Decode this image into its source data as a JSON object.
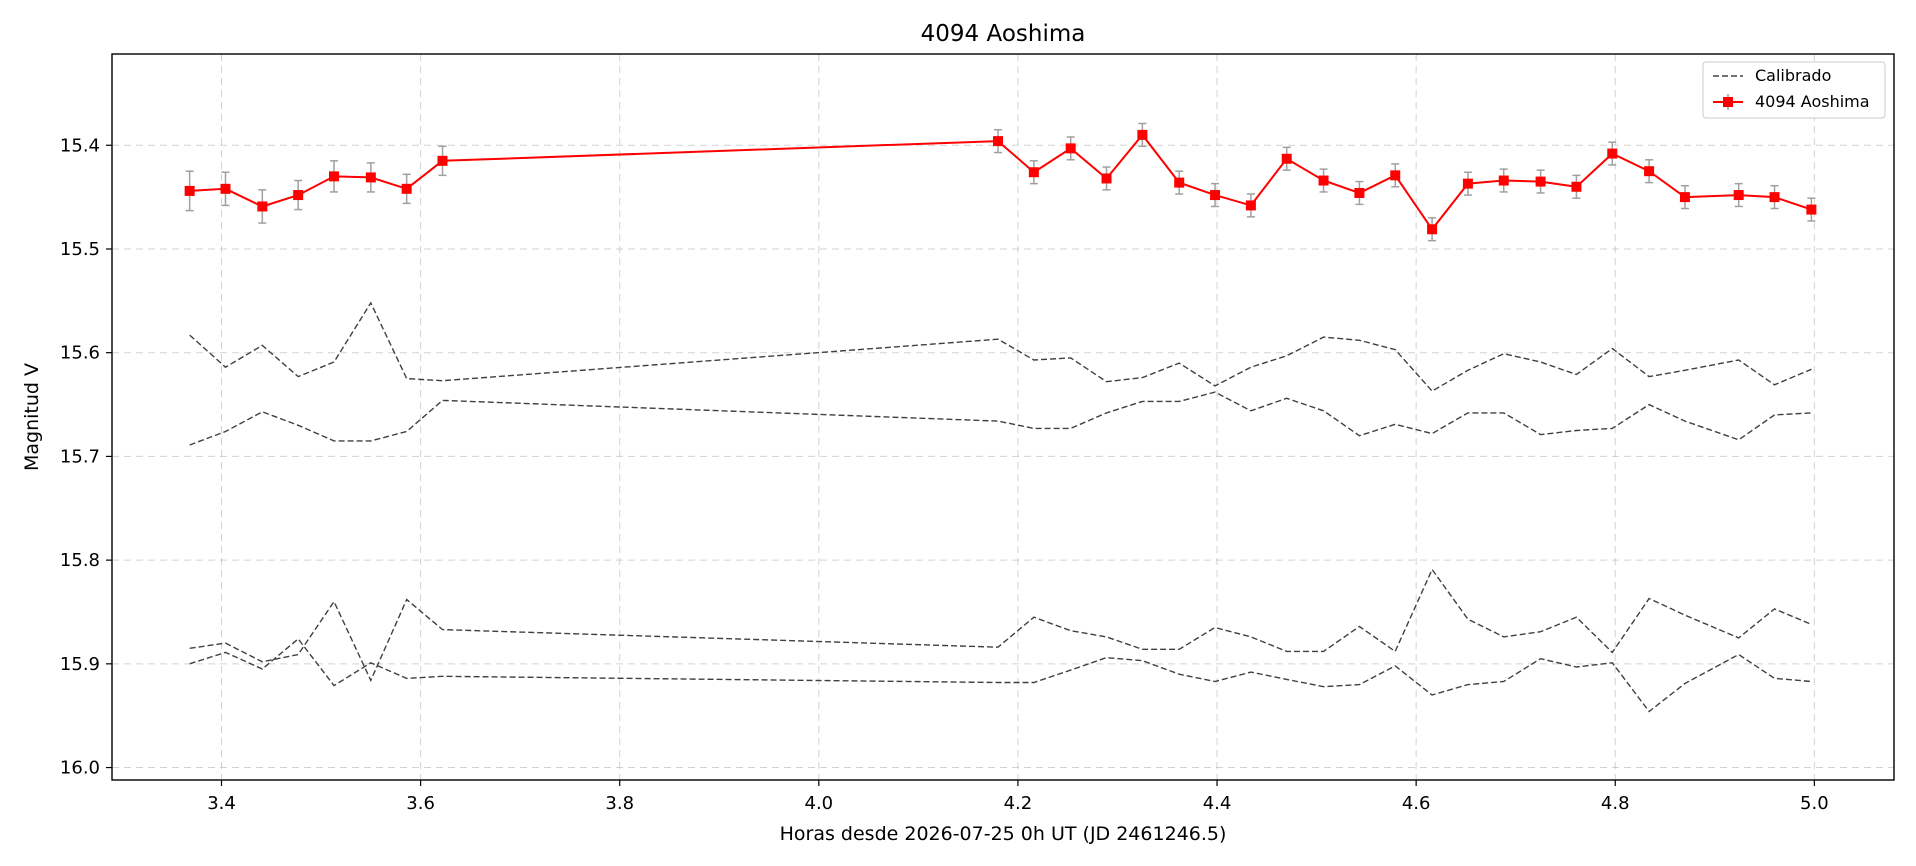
{
  "chart_data": {
    "type": "line",
    "title": "4094 Aoshima",
    "xlabel": "Horas desde 2026-07-25 0h UT (JD 2461246.5)",
    "ylabel": "Magnitud V",
    "xlim": [
      3.29,
      5.08
    ],
    "ylim": [
      16.012,
      15.312
    ],
    "y_inverted": true,
    "grid": true,
    "legend_position": "top-right",
    "x_ticks": [
      3.4,
      3.6,
      3.8,
      4.0,
      4.2,
      4.4,
      4.6,
      4.8,
      5.0
    ],
    "x_tick_labels": [
      "3.4",
      "3.6",
      "3.8",
      "4.0",
      "4.2",
      "4.4",
      "4.6",
      "4.8",
      "5.0"
    ],
    "y_ticks": [
      15.4,
      15.5,
      15.6,
      15.7,
      15.8,
      15.9,
      16.0
    ],
    "y_tick_labels": [
      "15.4",
      "15.5",
      "15.6",
      "15.7",
      "15.8",
      "15.9",
      "16.0"
    ],
    "x": [
      3.368,
      3.404,
      3.441,
      3.477,
      3.513,
      3.55,
      3.586,
      3.622,
      4.18,
      4.216,
      4.253,
      4.289,
      4.325,
      4.362,
      4.398,
      4.434,
      4.47,
      4.507,
      4.543,
      4.579,
      4.616,
      4.652,
      4.688,
      4.725,
      4.761,
      4.797,
      4.834,
      4.87,
      4.924,
      4.96,
      4.997
    ],
    "series": [
      {
        "name": "4094 Aoshima",
        "color": "#ff0000",
        "marker": "square",
        "values": [
          15.444,
          15.442,
          15.459,
          15.448,
          15.43,
          15.431,
          15.442,
          15.415,
          15.396,
          15.426,
          15.403,
          15.432,
          15.39,
          15.436,
          15.448,
          15.458,
          15.413,
          15.434,
          15.446,
          15.429,
          15.481,
          15.437,
          15.434,
          15.435,
          15.44,
          15.408,
          15.425,
          15.45,
          15.448,
          15.45,
          15.462
        ],
        "errors": [
          0.019,
          0.016,
          0.016,
          0.014,
          0.015,
          0.014,
          0.014,
          0.014,
          0.011,
          0.011,
          0.011,
          0.011,
          0.011,
          0.011,
          0.011,
          0.011,
          0.011,
          0.011,
          0.011,
          0.011,
          0.011,
          0.011,
          0.011,
          0.011,
          0.011,
          0.011,
          0.011,
          0.011,
          0.011,
          0.011,
          0.011
        ]
      },
      {
        "name": "Calibrado",
        "color": "#404040",
        "dashed": true,
        "values": [
          15.583,
          15.614,
          15.593,
          15.623,
          15.609,
          15.552,
          15.625,
          15.627,
          15.587,
          15.607,
          15.605,
          15.628,
          15.624,
          15.61,
          15.632,
          15.614,
          15.603,
          15.585,
          15.588,
          15.597,
          15.637,
          15.617,
          15.601,
          15.609,
          15.621,
          15.596,
          15.623,
          15.617,
          15.607,
          15.631,
          15.616
        ]
      },
      {
        "name": "",
        "color": "#404040",
        "dashed": true,
        "values": [
          15.689,
          15.676,
          15.657,
          15.67,
          15.685,
          15.685,
          15.676,
          15.646,
          15.666,
          15.673,
          15.673,
          15.658,
          15.647,
          15.647,
          15.638,
          15.656,
          15.644,
          15.656,
          15.68,
          15.669,
          15.678,
          15.658,
          15.658,
          15.679,
          15.675,
          15.673,
          15.65,
          15.666,
          15.684,
          15.66,
          15.658
        ]
      },
      {
        "name": "",
        "color": "#404040",
        "dashed": true,
        "values": [
          15.885,
          15.88,
          15.898,
          15.891,
          15.84,
          15.916,
          15.838,
          15.867,
          15.884,
          15.855,
          15.868,
          15.874,
          15.886,
          15.886,
          15.865,
          15.874,
          15.888,
          15.888,
          15.864,
          15.888,
          15.809,
          15.857,
          15.874,
          15.869,
          15.855,
          15.889,
          15.837,
          15.853,
          15.875,
          15.847,
          15.862
        ]
      },
      {
        "name": "",
        "color": "#404040",
        "dashed": true,
        "values": [
          15.9,
          15.889,
          15.905,
          15.876,
          15.921,
          15.899,
          15.914,
          15.912,
          15.918,
          15.918,
          15.906,
          15.894,
          15.897,
          15.91,
          15.917,
          15.908,
          15.915,
          15.922,
          15.92,
          15.902,
          15.93,
          15.92,
          15.917,
          15.895,
          15.903,
          15.899,
          15.946,
          15.919,
          15.891,
          15.914,
          15.917
        ]
      }
    ],
    "legend": [
      "Calibrado",
      "4094 Aoshima"
    ]
  }
}
